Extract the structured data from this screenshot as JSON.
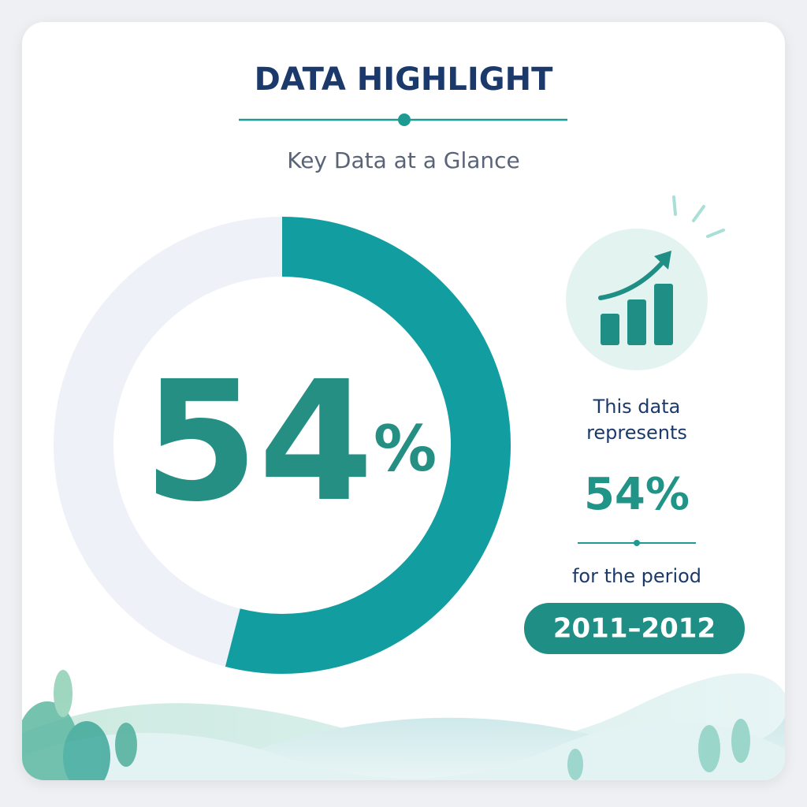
{
  "chart_data": {
    "type": "donut",
    "title": "DATA HIGHLIGHT",
    "subtitle": "Key Data at a Glance",
    "values": [
      54
    ],
    "value_labels": [
      "54%"
    ],
    "color": "#129ea0",
    "track_color": "#eef1f8",
    "annotations": [
      "This data represents",
      "for the period"
    ],
    "period": "2011–2012"
  }
}
